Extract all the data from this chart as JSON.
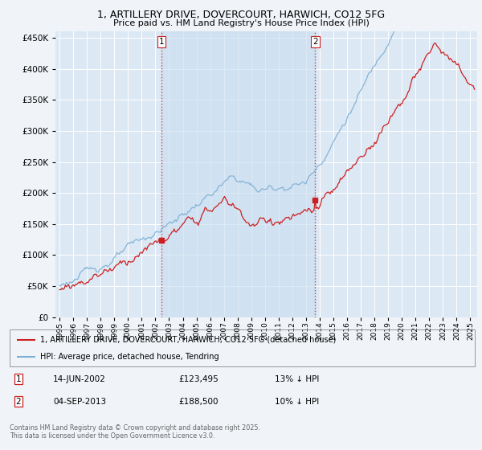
{
  "title": "1, ARTILLERY DRIVE, DOVERCOURT, HARWICH, CO12 5FG",
  "subtitle": "Price paid vs. HM Land Registry's House Price Index (HPI)",
  "legend_label_red": "1, ARTILLERY DRIVE, DOVERCOURT, HARWICH, CO12 5FG (detached house)",
  "legend_label_blue": "HPI: Average price, detached house, Tendring",
  "footnote": "Contains HM Land Registry data © Crown copyright and database right 2025.\nThis data is licensed under the Open Government Licence v3.0.",
  "vline1_year": 2002.45,
  "vline2_year": 2013.67,
  "dot1_year": 2002.45,
  "dot1_price": 123495,
  "dot2_year": 2013.67,
  "dot2_price": 188500,
  "ylim": [
    0,
    460000
  ],
  "yticks": [
    0,
    50000,
    100000,
    150000,
    200000,
    250000,
    300000,
    350000,
    400000,
    450000
  ],
  "xlim_start": 1995.0,
  "xlim_end": 2025.5,
  "background_color": "#dce8f0",
  "plot_background": "#dce8f0"
}
